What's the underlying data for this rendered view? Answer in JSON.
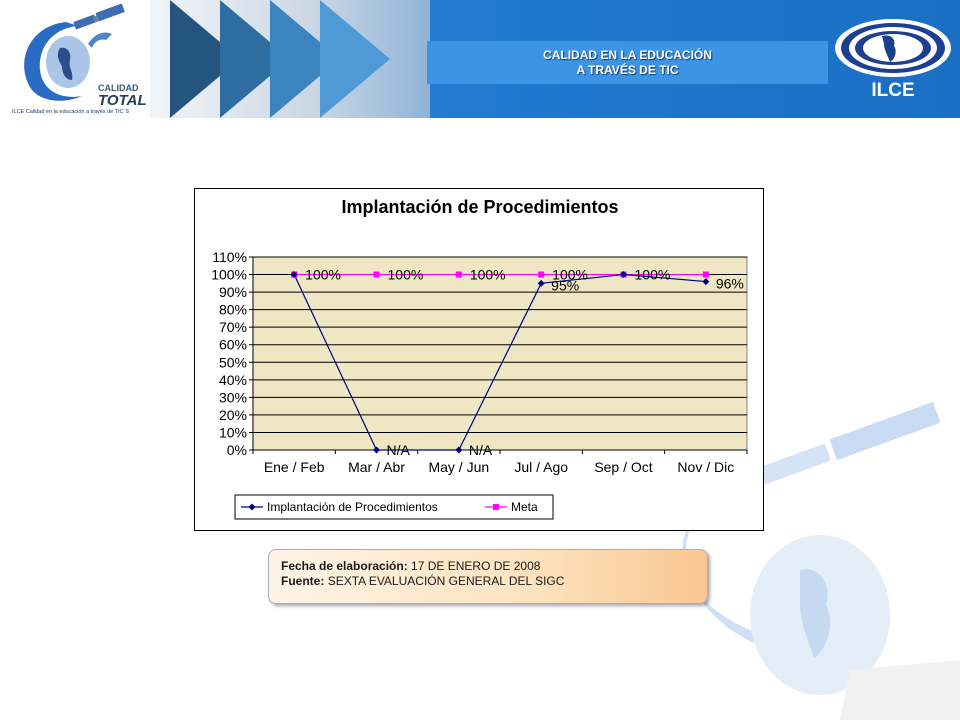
{
  "header": {
    "title_line1": "CALIDAD EN LA EDUCACIÓN",
    "title_line2": "A TRAVÉS DE TIC",
    "logo_left_word1": "CALIDAD",
    "logo_left_word2": "TOTAL",
    "logo_left_tagline": "ILCE Calidad en la educación a través de TIC´S",
    "logo_right_text": "ILCE"
  },
  "chart_data": {
    "type": "line",
    "title": "Implantación de Procedimientos",
    "categories": [
      "Ene / Feb",
      "Mar / Abr",
      "May / Jun",
      "Jul / Ago",
      "Sep / Oct",
      "Nov / Dic"
    ],
    "ylim": [
      0,
      1.1
    ],
    "yticks": [
      "0%",
      "10%",
      "20%",
      "30%",
      "40%",
      "50%",
      "60%",
      "70%",
      "80%",
      "90%",
      "100%",
      "110%"
    ],
    "grid": true,
    "legend_position": "bottom",
    "series": [
      {
        "name": "Implantación de Procedimientos",
        "values": [
          1.0,
          0,
          0,
          0.95,
          1.0,
          0.96
        ],
        "labels": [
          "",
          "N/A",
          "N/A",
          "95%",
          "",
          "96%"
        ],
        "color": "#000080",
        "marker": "diamond"
      },
      {
        "name": "Meta",
        "values": [
          1.0,
          1.0,
          1.0,
          1.0,
          1.0,
          1.0
        ],
        "labels": [
          "100%",
          "100%",
          "100%",
          "100%",
          "100%",
          ""
        ],
        "color": "#ff00ff",
        "marker": "square"
      }
    ],
    "plot_background": "#efe6c4"
  },
  "info": {
    "fecha_label": "Fecha de elaboración:",
    "fecha_value": "17  DE ENERO DE 2008",
    "fuente_label": "Fuente:",
    "fuente_value": "SEXTA EVALUACIÓN GENERAL DEL SIGC"
  }
}
